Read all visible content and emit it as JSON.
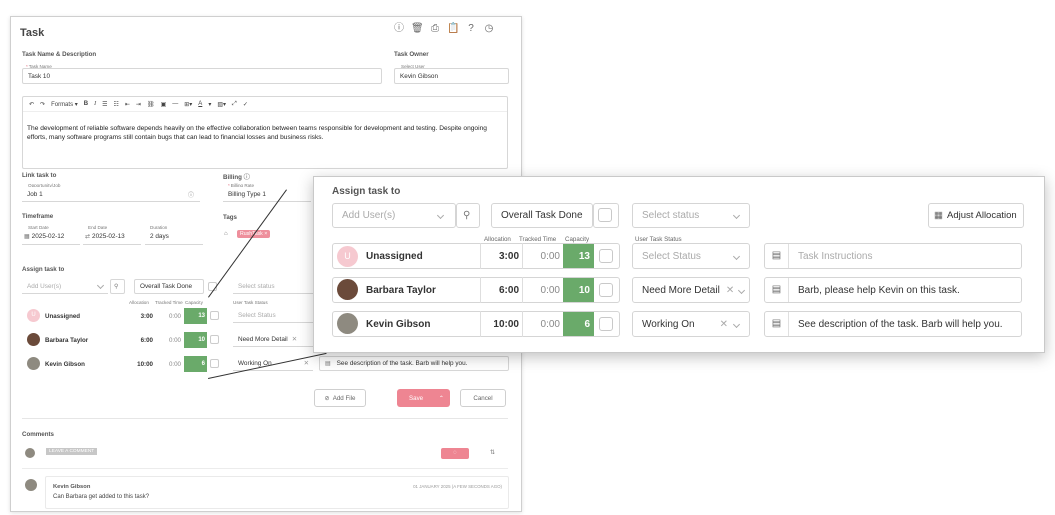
{
  "dialog": {
    "title": "Task",
    "icons": [
      "info-icon",
      "trash-icon",
      "print-icon",
      "clipboard-icon",
      "help-icon",
      "clock-icon"
    ],
    "close": "×",
    "task_name_section": "Task Name & Description",
    "task_name_label": "Task Name",
    "task_name_value": "Task 10",
    "task_owner_section": "Task Owner",
    "select_user_label": "Select User",
    "owner_value": "Kevin Gibson",
    "toolbar": {
      "formats": "Formats"
    },
    "description": "The development of reliable software depends heavily on the effective collaboration between teams responsible for development and testing. Despite ongoing efforts, many software programs still contain bugs that can lead to financial losses and business risks.",
    "link_task_section": "Link task to",
    "opportunity_label": "Opportunity/Job",
    "opportunity_value": "Job 1",
    "billing_section": "Billing",
    "billing_rate_label": "Billing Rate",
    "billing_value": "Billing Type 1",
    "timeframe_section": "Timeframe",
    "start_date_label": "Start Date",
    "start_date_value": "2025-02-12",
    "end_date_label": "End Date",
    "end_date_value": "2025-02-13",
    "duration_label": "Duration",
    "duration_value": "2 days",
    "tags_section": "Tags",
    "tag_value": "RushTask",
    "assign_section": "Assign task to",
    "add_users_placeholder": "Add User(s)",
    "overall_done": "Overall Task Done",
    "select_status": "Select status",
    "col_allocation": "Allocation",
    "col_tracked": "Tracked Time",
    "col_capacity": "Capacity",
    "col_user_status": "User Task Status",
    "rows": [
      {
        "name": "Unassigned",
        "initial": "U",
        "allocation": "3:00",
        "tracked": "0:00",
        "capacity": "13",
        "status": "Select Status"
      },
      {
        "name": "Barbara Taylor",
        "allocation": "6:00",
        "tracked": "0:00",
        "capacity": "10",
        "status": "Need More Detail"
      },
      {
        "name": "Kevin Gibson",
        "allocation": "10:00",
        "tracked": "0:00",
        "capacity": "6",
        "status": "Working On"
      }
    ],
    "last_instruction": "See description of the task. Barb will help you.",
    "add_file": "Add File",
    "save": "Save",
    "cancel": "Cancel",
    "comments_section": "Comments",
    "leave_comment": "LEAVE A COMMENT",
    "comment_author": "Kevin Gibson",
    "comment_date": "01 JANUARY 2025 (A FEW SECONDS AGO)",
    "comment_text": "Can Barbara get added to this task?"
  },
  "zoom": {
    "title": "Assign task to",
    "add_users_placeholder": "Add User(s)",
    "overall_done": "Overall Task Done",
    "select_status": "Select status",
    "adjust_allocation": "Adjust Allocation",
    "col_allocation": "Allocation",
    "col_tracked": "Tracked Time",
    "col_capacity": "Capacity",
    "col_user_status": "User Task Status",
    "rows": [
      {
        "name": "Unassigned",
        "initial": "U",
        "allocation": "3:00",
        "tracked": "0:00",
        "capacity": "13",
        "status": "Select Status",
        "instruction": "Task Instructions"
      },
      {
        "name": "Barbara Taylor",
        "allocation": "6:00",
        "tracked": "0:00",
        "capacity": "10",
        "status": "Need More Detail",
        "instruction": "Barb, please help Kevin on this task."
      },
      {
        "name": "Kevin Gibson",
        "allocation": "10:00",
        "tracked": "0:00",
        "capacity": "6",
        "status": "Working On",
        "instruction": "See description of the task. Barb will help you."
      }
    ]
  },
  "colors": {
    "capacity_green": "#6aaa6a",
    "accent_pink": "#ee8592",
    "unassigned_avatar": "#f6c9d0"
  }
}
